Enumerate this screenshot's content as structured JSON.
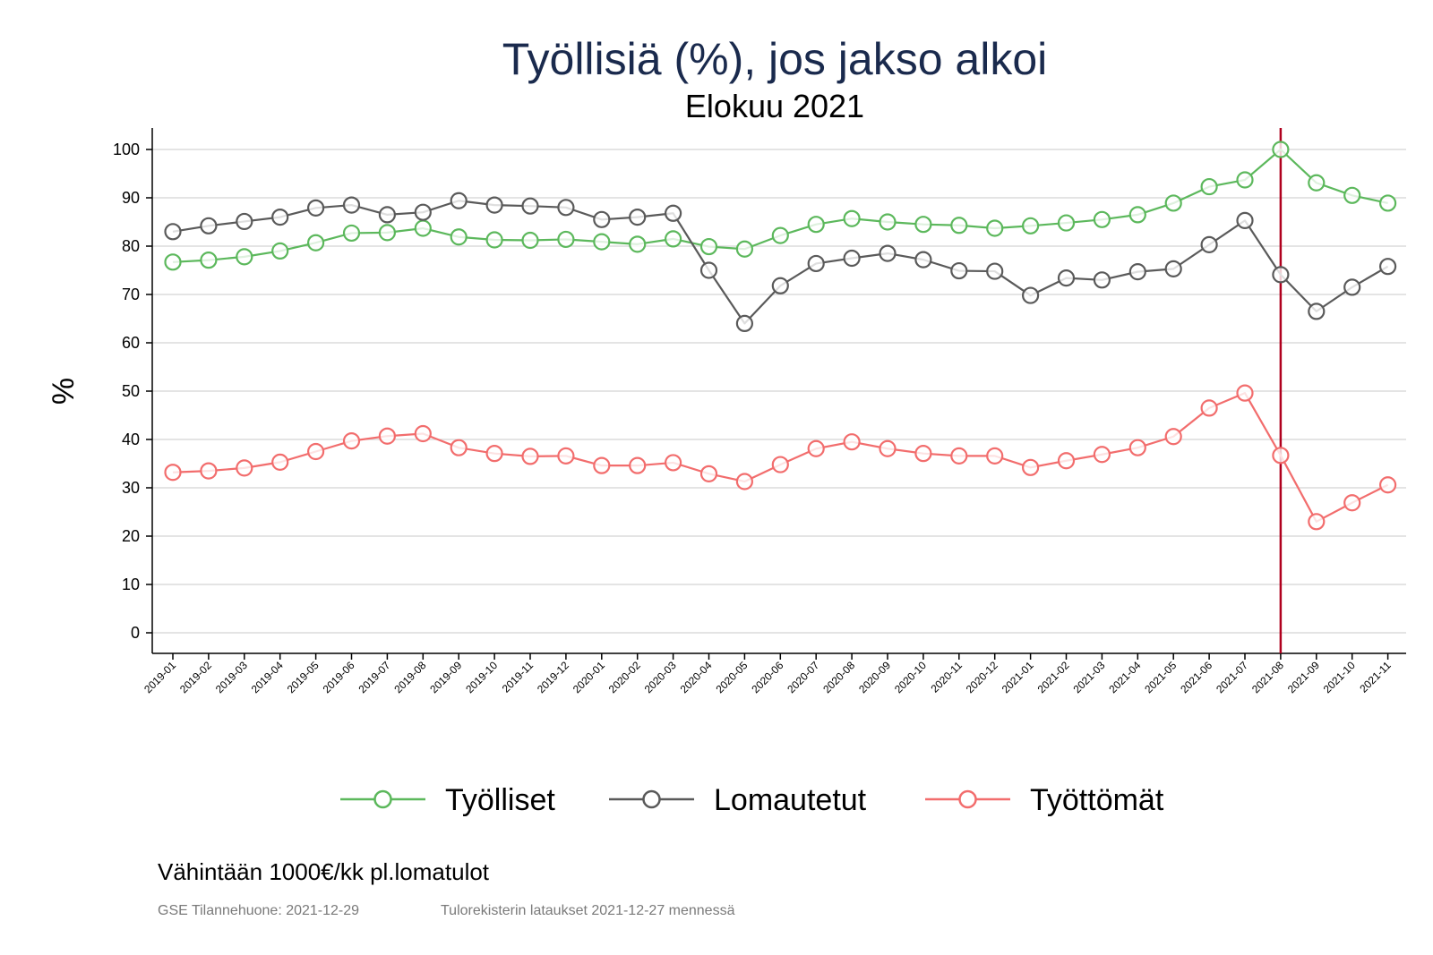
{
  "chart_data": {
    "type": "line",
    "title": "Työllisiä (%), jos jakso alkoi",
    "subtitle": "Elokuu 2021",
    "ylabel": "%",
    "xlabel": "",
    "ylim": [
      0,
      100
    ],
    "yticks": [
      0,
      10,
      20,
      30,
      40,
      50,
      60,
      70,
      80,
      90,
      100
    ],
    "grid": true,
    "legend_position": "bottom",
    "reference_line": {
      "x": "2021-08",
      "color": "#b0001e"
    },
    "categories": [
      "2019-01",
      "2019-02",
      "2019-03",
      "2019-04",
      "2019-05",
      "2019-06",
      "2019-07",
      "2019-08",
      "2019-09",
      "2019-10",
      "2019-11",
      "2019-12",
      "2020-01",
      "2020-02",
      "2020-03",
      "2020-04",
      "2020-05",
      "2020-06",
      "2020-07",
      "2020-08",
      "2020-09",
      "2020-10",
      "2020-11",
      "2020-12",
      "2021-01",
      "2021-02",
      "2021-03",
      "2021-04",
      "2021-05",
      "2021-06",
      "2021-07",
      "2021-08",
      "2021-09",
      "2021-10",
      "2021-11"
    ],
    "series": [
      {
        "name": "Työlliset",
        "color": "#5cb85c",
        "values": [
          76.7,
          77.1,
          77.8,
          79.0,
          80.7,
          82.7,
          82.8,
          83.7,
          81.9,
          81.3,
          81.2,
          81.4,
          80.9,
          80.4,
          81.5,
          79.9,
          79.4,
          82.2,
          84.5,
          85.7,
          85.0,
          84.5,
          84.3,
          83.7,
          84.2,
          84.8,
          85.5,
          86.5,
          88.9,
          92.3,
          93.7,
          100.0,
          93.1,
          90.5,
          88.9
        ]
      },
      {
        "name": "Lomautetut",
        "color": "#5a5a5a",
        "values": [
          83.0,
          84.2,
          85.1,
          86.0,
          87.9,
          88.5,
          86.5,
          87.0,
          89.4,
          88.5,
          88.3,
          88.0,
          85.5,
          86.0,
          86.8,
          75.0,
          64.0,
          71.8,
          76.4,
          77.5,
          78.5,
          77.2,
          74.9,
          74.8,
          69.8,
          73.4,
          73.0,
          74.7,
          75.3,
          80.3,
          85.3,
          74.1,
          66.5,
          71.5,
          75.8
        ]
      },
      {
        "name": "Työttömät",
        "color": "#f26d6d",
        "values": [
          33.2,
          33.5,
          34.1,
          35.3,
          37.5,
          39.7,
          40.7,
          41.2,
          38.3,
          37.1,
          36.5,
          36.6,
          34.6,
          34.6,
          35.2,
          32.9,
          31.3,
          34.8,
          38.1,
          39.5,
          38.1,
          37.1,
          36.6,
          36.6,
          34.2,
          35.6,
          36.9,
          38.3,
          40.6,
          46.5,
          49.6,
          36.7,
          23.0,
          26.9,
          30.6
        ]
      }
    ]
  },
  "footer": {
    "note": "Vähintään 1000€/kk pl.lomatulot",
    "source_left": "GSE Tilannehuone: 2021-12-29",
    "source_right": "Tulorekisterin lataukset 2021-12-27 mennessä"
  }
}
